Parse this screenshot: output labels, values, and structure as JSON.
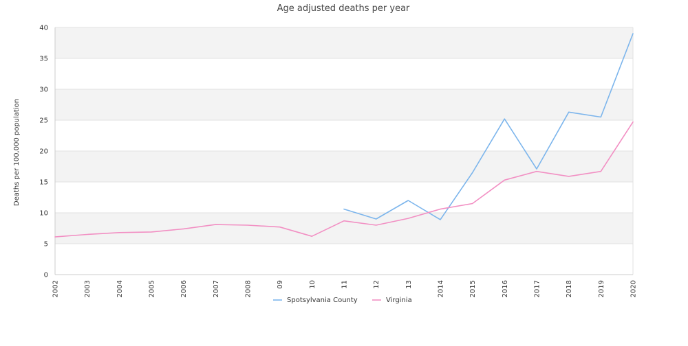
{
  "chart_data": {
    "type": "line",
    "title": "Age adjusted deaths per year",
    "xlabel": "",
    "ylabel": "Deaths per 100,000 population",
    "categories": [
      "2002",
      "2003",
      "2004",
      "2005",
      "2006",
      "2007",
      "2008",
      "09",
      "10",
      "11",
      "12",
      "13",
      "2014",
      "2015",
      "2016",
      "2017",
      "2018",
      "2019",
      "2020"
    ],
    "ylim": [
      0,
      40
    ],
    "yticks": [
      0,
      5,
      10,
      15,
      20,
      25,
      30,
      35,
      40
    ],
    "grid": "horizontal alternating bands",
    "legend_position": "bottom",
    "series": [
      {
        "name": "Spotsylvania County",
        "color": "#7cb5ec",
        "values": [
          null,
          null,
          null,
          null,
          null,
          null,
          null,
          null,
          null,
          10.6,
          9.0,
          12.0,
          8.9,
          16.5,
          25.2,
          17.1,
          26.3,
          25.5,
          39.0
        ]
      },
      {
        "name": "Virginia",
        "color": "#f28fc3",
        "values": [
          6.1,
          6.5,
          6.8,
          6.9,
          7.4,
          8.1,
          8.0,
          7.7,
          6.2,
          8.7,
          8.0,
          9.1,
          10.6,
          11.5,
          15.3,
          16.7,
          15.9,
          16.7,
          24.7
        ]
      }
    ]
  },
  "colors": {
    "band": "#f3f3f3",
    "gridline": "#e0e0e0",
    "axis": "#cccccc"
  }
}
